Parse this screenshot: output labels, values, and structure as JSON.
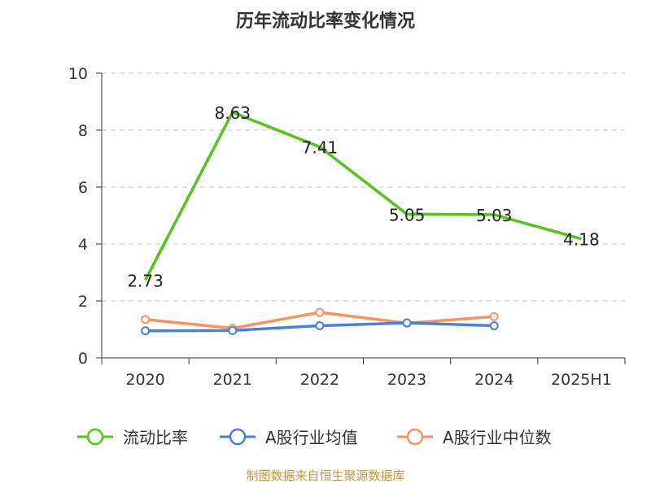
{
  "chart_data": {
    "type": "line",
    "title": "历年流动比率变化情况",
    "categories": [
      "2020",
      "2021",
      "2022",
      "2023",
      "2024",
      "2025H1"
    ],
    "ylim": [
      0,
      10
    ],
    "yticks": [
      0,
      2,
      4,
      6,
      8,
      10
    ],
    "grid": true,
    "legend_position": "bottom",
    "series": [
      {
        "name": "流动比率",
        "color": "#52c41a",
        "labels": true,
        "values": [
          2.73,
          8.63,
          7.41,
          5.05,
          5.03,
          4.18
        ]
      },
      {
        "name": "A股行业均值",
        "color": "#4a7fdb",
        "labels": false,
        "values": [
          0.95,
          0.96,
          1.13,
          1.23,
          1.13,
          null
        ]
      },
      {
        "name": "A股行业中位数",
        "color": "#f7935c",
        "labels": false,
        "values": [
          1.35,
          1.04,
          1.6,
          1.22,
          1.45,
          null
        ]
      }
    ]
  },
  "source_text": "制图数据来自恒生聚源数据库"
}
